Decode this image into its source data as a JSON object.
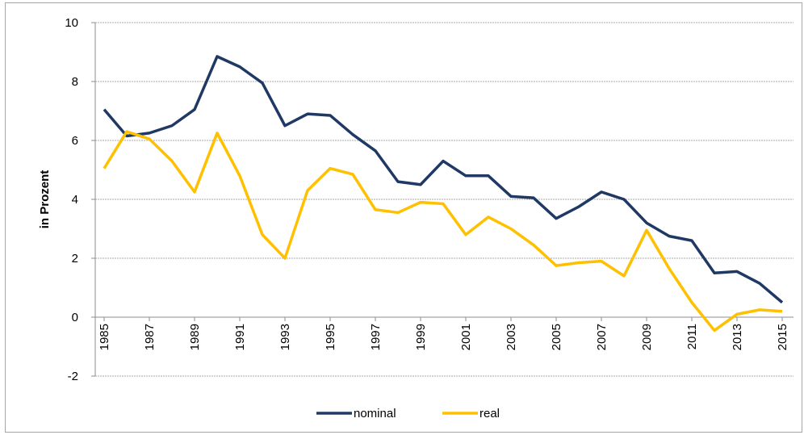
{
  "chart_data": {
    "type": "line",
    "y_label": "in Prozent",
    "x": [
      1985,
      1986,
      1987,
      1988,
      1989,
      1990,
      1991,
      1992,
      1993,
      1994,
      1995,
      1996,
      1997,
      1998,
      1999,
      2000,
      2001,
      2002,
      2003,
      2004,
      2005,
      2006,
      2007,
      2008,
      2009,
      2010,
      2011,
      2012,
      2013,
      2014,
      2015
    ],
    "series": [
      {
        "name": "nominal",
        "color": "#1f3864",
        "values": [
          7.05,
          6.15,
          6.25,
          6.5,
          7.05,
          8.85,
          8.5,
          7.95,
          6.5,
          6.9,
          6.85,
          6.2,
          5.65,
          4.6,
          4.5,
          5.3,
          4.8,
          4.8,
          4.1,
          4.05,
          3.35,
          3.75,
          4.25,
          4.0,
          3.2,
          2.75,
          2.6,
          1.5,
          1.55,
          1.15,
          0.5
        ]
      },
      {
        "name": "real",
        "color": "#ffc000",
        "values": [
          5.05,
          6.3,
          6.05,
          5.3,
          4.25,
          6.25,
          4.8,
          2.8,
          2.0,
          4.3,
          5.05,
          4.85,
          3.65,
          3.55,
          3.9,
          3.85,
          2.8,
          3.4,
          3.0,
          2.45,
          1.75,
          1.85,
          1.9,
          1.4,
          2.95,
          1.65,
          0.5,
          -0.45,
          0.1,
          0.25,
          0.2
        ]
      }
    ],
    "xlim": [
      1984.5,
      2015.5
    ],
    "xticks": [
      1985,
      1987,
      1989,
      1991,
      1993,
      1995,
      1997,
      1999,
      2001,
      2003,
      2005,
      2007,
      2009,
      2011,
      2013,
      2015
    ],
    "ylim": [
      -2,
      10
    ],
    "yticks": [
      -2,
      0,
      2,
      4,
      6,
      8,
      10
    ],
    "grid": true,
    "legend": "bottom"
  }
}
